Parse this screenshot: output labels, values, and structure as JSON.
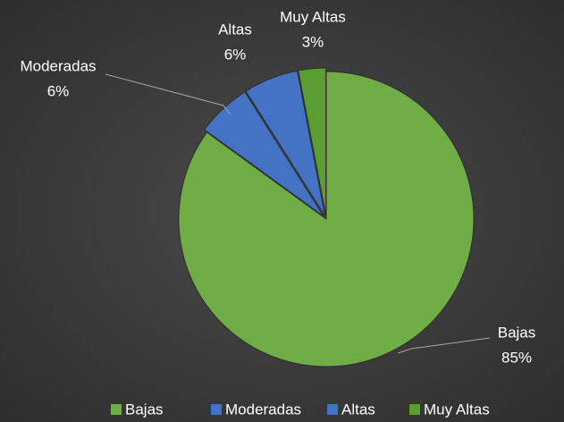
{
  "chart_data": {
    "type": "pie",
    "categories": [
      "Bajas",
      "Moderadas",
      "Altas",
      "Muy Altas"
    ],
    "values": [
      85,
      6,
      6,
      3
    ],
    "value_labels": [
      "85%",
      "6%",
      "6%",
      "3%"
    ],
    "colors": [
      "#70ad47",
      "#4472c4",
      "#4472c4",
      "#5a9e32"
    ],
    "legend": "bottom"
  }
}
